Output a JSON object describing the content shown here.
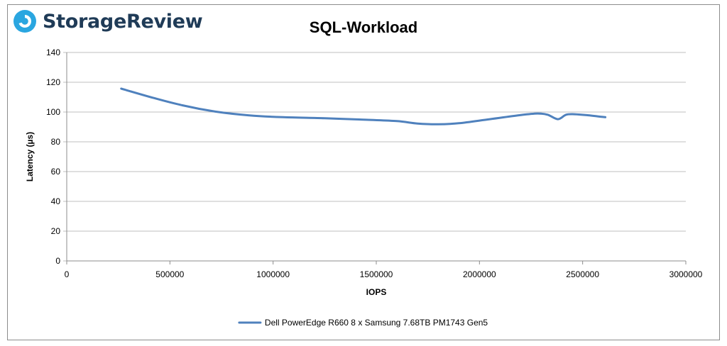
{
  "brand": {
    "name": "StorageReview",
    "colors": {
      "mark_outer": "#2aa6e0",
      "mark_inner": "#ffffff",
      "text": "#1f3b57"
    }
  },
  "chart_data": {
    "type": "line",
    "title": "SQL-Workload",
    "xlabel": "IOPS",
    "ylabel": "Latency (µs)",
    "xlim": [
      0,
      3000000
    ],
    "ylim": [
      0,
      140
    ],
    "x_ticks": [
      0,
      500000,
      1000000,
      1500000,
      2000000,
      2500000,
      3000000
    ],
    "y_ticks": [
      0,
      20,
      40,
      60,
      80,
      100,
      120,
      140
    ],
    "grid": "horizontal",
    "legend_position": "bottom",
    "series": [
      {
        "name": "Dell PowerEdge R660 8 x Samsung 7.68TB PM1743 Gen5",
        "color": "#4f81bd",
        "x": [
          264000,
          420000,
          560000,
          720000,
          880000,
          1050000,
          1250000,
          1450000,
          1600000,
          1700000,
          1800000,
          1900000,
          2050000,
          2200000,
          2280000,
          2330000,
          2380000,
          2420000,
          2460000,
          2520000,
          2610000
        ],
        "y": [
          115.7,
          109.5,
          104.5,
          100.3,
          97.8,
          96.5,
          95.8,
          94.8,
          93.9,
          92.3,
          91.8,
          92.5,
          95.2,
          98.0,
          99.0,
          98.2,
          95.2,
          98.2,
          98.5,
          97.9,
          96.5
        ]
      }
    ]
  }
}
